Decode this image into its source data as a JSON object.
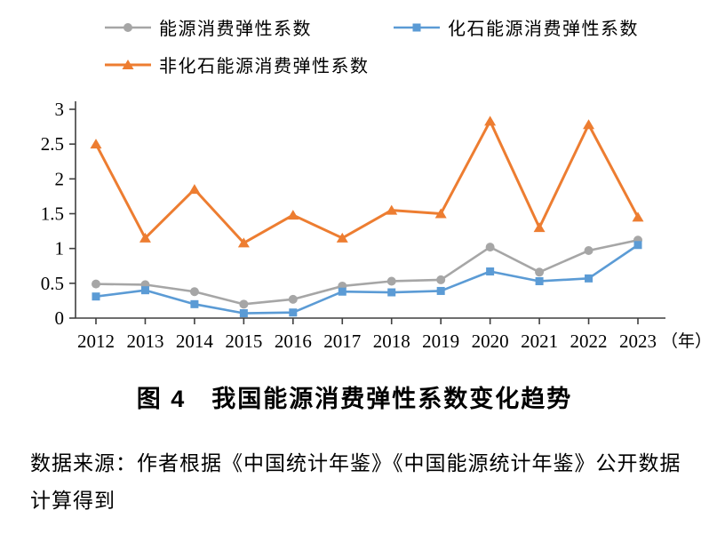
{
  "colors": {
    "energy_gray": "#a6a6a6",
    "fossil_blue": "#5b9bd5",
    "nonfossil_orange": "#ed7d31",
    "axis": "#3f3f3f",
    "text": "#000000",
    "background": "#ffffff"
  },
  "chart_data": {
    "type": "line",
    "title": "",
    "x": [
      2012,
      2013,
      2014,
      2015,
      2016,
      2017,
      2018,
      2019,
      2020,
      2021,
      2022,
      2023
    ],
    "x_unit_label": "（年）",
    "xlabel": "",
    "ylabel": "",
    "ylim": [
      0,
      3
    ],
    "yticks": [
      0,
      0.5,
      1,
      1.5,
      2,
      2.5,
      3
    ],
    "grid": false,
    "legend_position": "top",
    "series": [
      {
        "name": "能源消费弹性系数",
        "marker": "circle",
        "color": "#a6a6a6",
        "values": [
          0.49,
          0.48,
          0.38,
          0.2,
          0.27,
          0.46,
          0.53,
          0.55,
          1.02,
          0.66,
          0.97,
          1.12
        ]
      },
      {
        "name": "化石能源消费弹性系数",
        "marker": "square",
        "color": "#5b9bd5",
        "values": [
          0.31,
          0.4,
          0.2,
          0.07,
          0.08,
          0.38,
          0.37,
          0.39,
          0.67,
          0.53,
          0.57,
          1.05
        ]
      },
      {
        "name": "非化石能源消费弹性系数",
        "marker": "triangle",
        "color": "#ed7d31",
        "values": [
          2.5,
          1.15,
          1.85,
          1.08,
          1.48,
          1.15,
          1.55,
          1.5,
          2.83,
          1.3,
          2.78,
          1.45
        ]
      }
    ]
  },
  "caption": "图 4　我国能源消费弹性系数变化趋势",
  "source": "数据来源：作者根据《中国统计年鉴》《中国能源统计年鉴》公开数据计算得到"
}
